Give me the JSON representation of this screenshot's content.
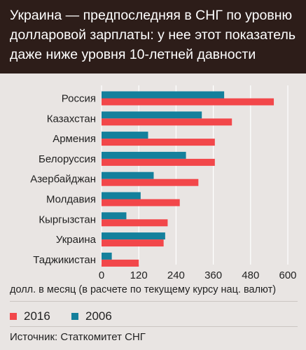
{
  "title": "Украина — предпоследняя в СНГ по уровню долларовой зарплаты: у нее этот  показатель даже ниже уровня 10-летней давности",
  "colors": {
    "title_bg": "#2d1d19",
    "s2016": "#f2474a",
    "s2006": "#14809c"
  },
  "chart_data": {
    "type": "bar",
    "orientation": "horizontal",
    "categories": [
      "Россия",
      "Казахстан",
      "Армения",
      "Белоруссия",
      "Азербайджан",
      "Молдавия",
      "Кыргызстан",
      "Украина",
      "Таджикистан"
    ],
    "series": [
      {
        "name": "2006",
        "values": [
          395,
          323,
          150,
          272,
          168,
          126,
          80,
          205,
          33
        ]
      },
      {
        "name": "2016",
        "values": [
          555,
          420,
          365,
          365,
          312,
          252,
          213,
          200,
          120
        ]
      }
    ],
    "xlim": [
      0,
      600
    ],
    "xticks": [
      0,
      120,
      240,
      360,
      480,
      600
    ],
    "xtick_labels": [
      "0",
      "120",
      "240",
      "360",
      "480",
      "600"
    ],
    "xlabel": "долл. в месяц (в расчете по текущему курсу нац. валют)",
    "grid": true
  },
  "legend": [
    {
      "label": "2016",
      "color": "#f2474a"
    },
    {
      "label": "2006",
      "color": "#14809c"
    }
  ],
  "source": "Источник: Статкомитет СНГ"
}
